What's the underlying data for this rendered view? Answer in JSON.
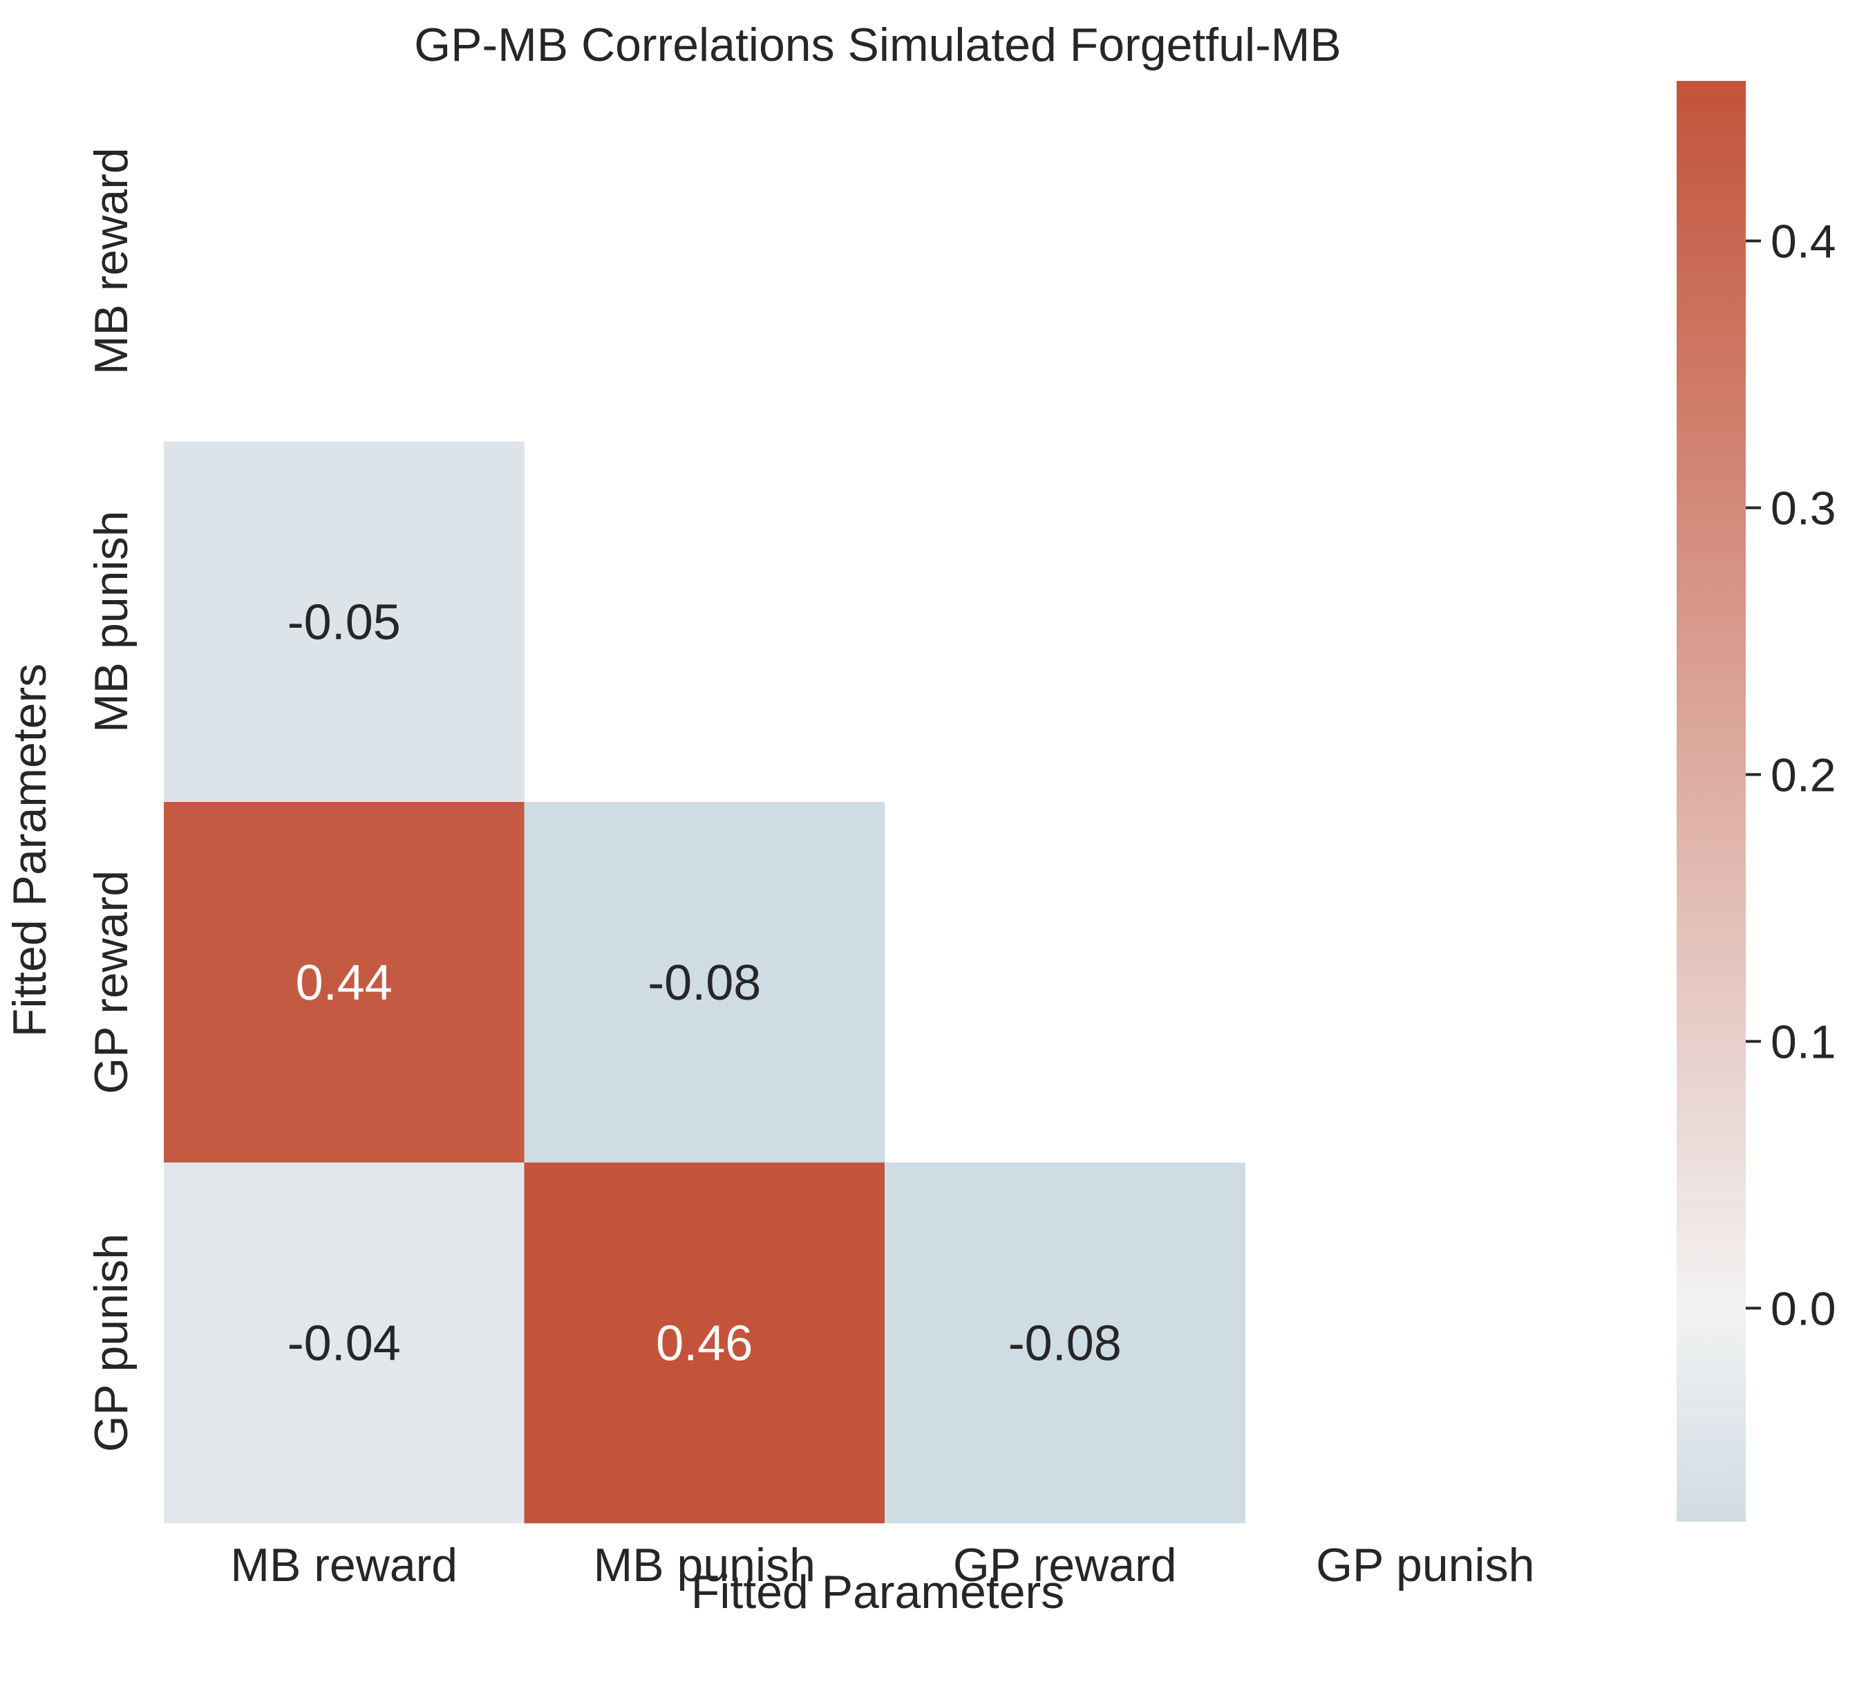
{
  "chart_data": {
    "type": "heatmap",
    "title": "GP-MB Correlations Simulated Forgetful-MB",
    "xlabel": "Fitted Parameters",
    "ylabel": "Fitted Parameters",
    "x_categories": [
      "MB reward",
      "MB punish",
      "GP reward",
      "GP punish"
    ],
    "y_categories": [
      "MB reward",
      "MB punish",
      "GP reward",
      "GP punish"
    ],
    "mask": "upper-triangle-including-diagonal",
    "cells": [
      {
        "row": 1,
        "col": 0,
        "value": -0.05,
        "label": "-0.05"
      },
      {
        "row": 2,
        "col": 0,
        "value": 0.44,
        "label": "0.44"
      },
      {
        "row": 2,
        "col": 1,
        "value": -0.08,
        "label": "-0.08"
      },
      {
        "row": 3,
        "col": 0,
        "value": -0.04,
        "label": "-0.04"
      },
      {
        "row": 3,
        "col": 1,
        "value": 0.46,
        "label": "0.46"
      },
      {
        "row": 3,
        "col": 2,
        "value": -0.08,
        "label": "-0.08"
      }
    ],
    "colorbar": {
      "range": [
        -0.08,
        0.46
      ],
      "ticks": [
        0.4,
        0.3,
        0.2,
        0.1,
        0.0
      ],
      "tick_labels": [
        "0.4",
        "0.3",
        "0.2",
        "0.1",
        "0.0"
      ],
      "low_color": "#d0dce3",
      "mid_color": "#f2f2f2",
      "high_color": "#c3533a"
    },
    "grid": false
  }
}
